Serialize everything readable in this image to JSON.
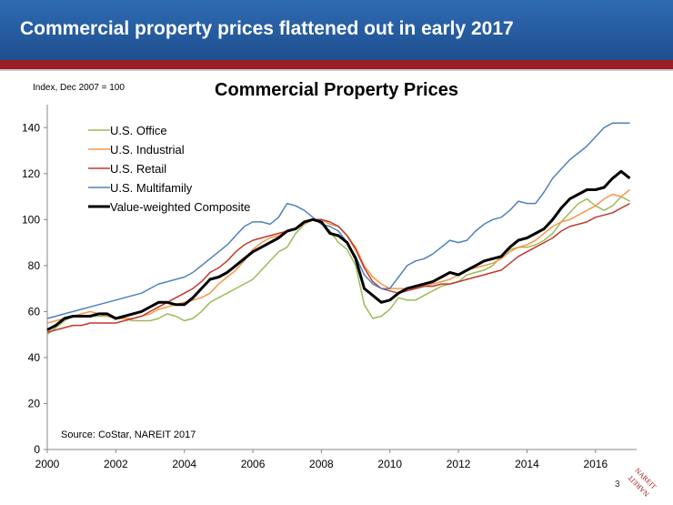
{
  "slide": {
    "title": "Commercial property prices flattened out in early 2017",
    "page_number": "3",
    "logo_text": "NAREIT",
    "colors": {
      "banner": "#2a64aa",
      "stripe": "#9b1f24"
    }
  },
  "chart_data": {
    "type": "line",
    "title": "Commercial Property Prices",
    "ylabel": "Index, Dec 2007 = 100",
    "xlabel": "",
    "source": "Source: CoStar, NAREIT 2017",
    "xlim": [
      2000,
      2017.2
    ],
    "ylim": [
      0,
      150
    ],
    "xticks": [
      "2000",
      "2002",
      "2004",
      "2006",
      "2008",
      "2010",
      "2012",
      "2014",
      "2016"
    ],
    "yticks": [
      "0",
      "20",
      "40",
      "60",
      "80",
      "100",
      "120",
      "140"
    ],
    "grid": false,
    "legend": "top-left",
    "x": [
      2000.0,
      2000.25,
      2000.5,
      2000.75,
      2001.0,
      2001.25,
      2001.5,
      2001.75,
      2002.0,
      2002.25,
      2002.5,
      2002.75,
      2003.0,
      2003.25,
      2003.5,
      2003.75,
      2004.0,
      2004.25,
      2004.5,
      2004.75,
      2005.0,
      2005.25,
      2005.5,
      2005.75,
      2006.0,
      2006.25,
      2006.5,
      2006.75,
      2007.0,
      2007.25,
      2007.5,
      2007.75,
      2008.0,
      2008.25,
      2008.5,
      2008.75,
      2009.0,
      2009.25,
      2009.5,
      2009.75,
      2010.0,
      2010.25,
      2010.5,
      2010.75,
      2011.0,
      2011.25,
      2011.5,
      2011.75,
      2012.0,
      2012.25,
      2012.5,
      2012.75,
      2013.0,
      2013.25,
      2013.5,
      2013.75,
      2014.0,
      2014.25,
      2014.5,
      2014.75,
      2015.0,
      2015.25,
      2015.5,
      2015.75,
      2016.0,
      2016.25,
      2016.5,
      2016.75,
      2017.0
    ],
    "series": [
      {
        "name": "U.S. Office",
        "color": "#9bbb59",
        "width": 1.5,
        "values": [
          50,
          53,
          56,
          58,
          58,
          58,
          58,
          58,
          57,
          57,
          56,
          56,
          56,
          57,
          59,
          58,
          56,
          57,
          60,
          64,
          66,
          68,
          70,
          72,
          74,
          78,
          82,
          86,
          88,
          94,
          98,
          100,
          99,
          95,
          90,
          87,
          80,
          63,
          57,
          58,
          61,
          66,
          65,
          65,
          67,
          69,
          71,
          72,
          73,
          76,
          77,
          78,
          80,
          84,
          87,
          88,
          88,
          89,
          91,
          94,
          99,
          103,
          107,
          109,
          106,
          104,
          106,
          110,
          108
        ]
      },
      {
        "name": "U.S. Industrial",
        "color": "#f79646",
        "width": 1.5,
        "values": [
          55,
          56,
          57,
          58,
          59,
          60,
          59,
          58,
          57,
          57,
          57,
          58,
          59,
          61,
          62,
          63,
          64,
          65,
          66,
          68,
          72,
          75,
          78,
          82,
          87,
          90,
          92,
          93,
          95,
          96,
          98,
          100,
          100,
          98,
          97,
          93,
          88,
          80,
          75,
          72,
          70,
          70,
          70,
          70,
          71,
          72,
          73,
          74,
          76,
          78,
          79,
          80,
          81,
          83,
          86,
          88,
          89,
          91,
          94,
          97,
          99,
          100,
          102,
          104,
          106,
          109,
          111,
          110,
          113
        ]
      },
      {
        "name": "U.S. Retail",
        "color": "#c0392b",
        "width": 1.5,
        "values": [
          51,
          52,
          53,
          54,
          54,
          55,
          55,
          55,
          55,
          56,
          57,
          58,
          60,
          62,
          64,
          66,
          68,
          70,
          73,
          77,
          79,
          82,
          86,
          89,
          91,
          92,
          93,
          94,
          95,
          96,
          99,
          100,
          100,
          99,
          97,
          93,
          87,
          79,
          73,
          70,
          69,
          68,
          69,
          70,
          71,
          71,
          72,
          72,
          73,
          74,
          75,
          76,
          77,
          78,
          81,
          84,
          86,
          88,
          90,
          92,
          95,
          97,
          98,
          99,
          101,
          102,
          103,
          105,
          107
        ]
      },
      {
        "name": "U.S. Multifamily",
        "color": "#4f81bd",
        "width": 1.5,
        "values": [
          57,
          58,
          59,
          60,
          61,
          62,
          63,
          64,
          65,
          66,
          67,
          68,
          70,
          72,
          73,
          74,
          75,
          77,
          80,
          83,
          86,
          89,
          93,
          97,
          99,
          99,
          98,
          101,
          107,
          106,
          104,
          101,
          98,
          97,
          95,
          90,
          84,
          76,
          72,
          70,
          70,
          75,
          80,
          82,
          83,
          85,
          88,
          91,
          90,
          91,
          95,
          98,
          100,
          101,
          104,
          108,
          107,
          107,
          112,
          118,
          122,
          126,
          129,
          132,
          136,
          140,
          142,
          142,
          142
        ]
      },
      {
        "name": "Value-weighted Composite",
        "color": "#000000",
        "width": 3,
        "values": [
          52,
          54,
          57,
          58,
          58,
          58,
          59,
          59,
          57,
          58,
          59,
          60,
          62,
          64,
          64,
          63,
          63,
          66,
          70,
          74,
          75,
          77,
          80,
          83,
          86,
          88,
          90,
          92,
          95,
          96,
          99,
          100,
          99,
          94,
          93,
          90,
          83,
          70,
          67,
          64,
          65,
          68,
          70,
          71,
          72,
          73,
          75,
          77,
          76,
          78,
          80,
          82,
          83,
          84,
          88,
          91,
          92,
          94,
          96,
          100,
          105,
          109,
          111,
          113,
          113,
          114,
          118,
          121,
          118
        ]
      }
    ]
  }
}
